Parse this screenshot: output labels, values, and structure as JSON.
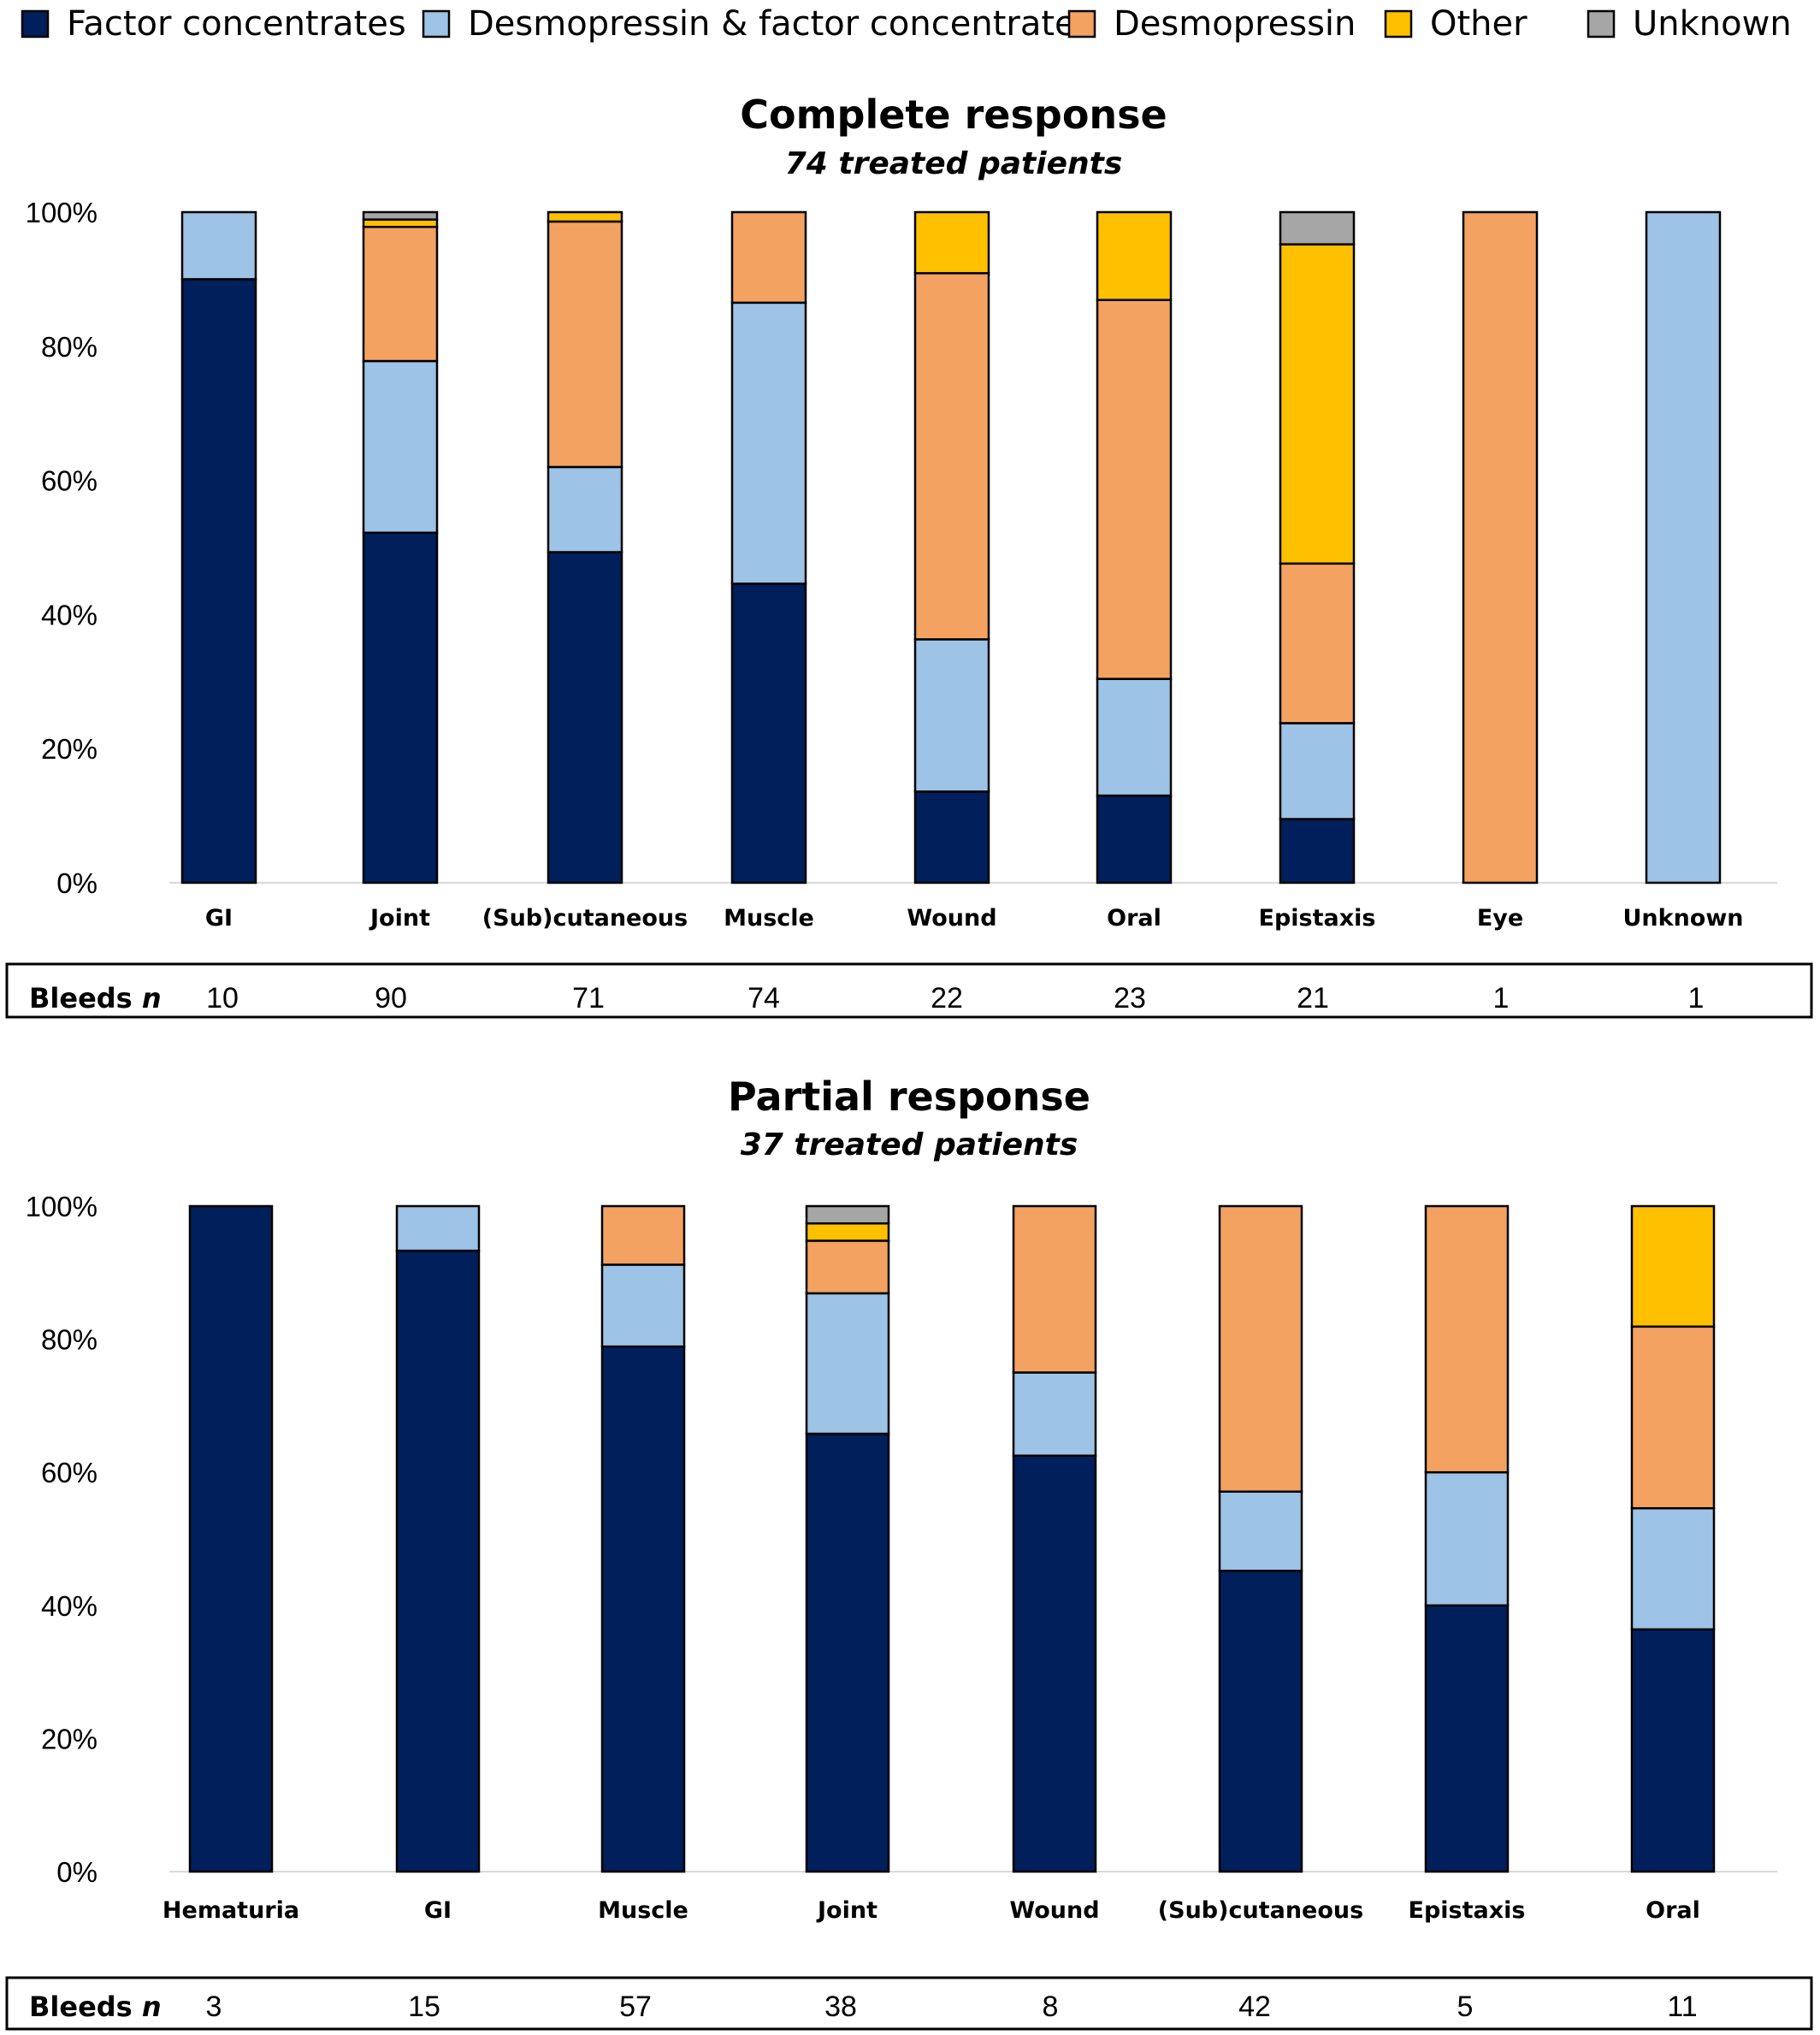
{
  "legend": [
    {
      "name": "Factor concentrates",
      "color": "#001f5b"
    },
    {
      "name": "Desmopressin & factor concentrates",
      "color": "#9dc3e6"
    },
    {
      "name": "Desmopressin",
      "color": "#f4a261"
    },
    {
      "name": "Other",
      "color": "#ffc000"
    },
    {
      "name": "Unknown",
      "color": "#a6a6a6"
    }
  ],
  "y_ticks": [
    "0%",
    "20%",
    "40%",
    "60%",
    "80%",
    "100%"
  ],
  "bleeds_label": "Bleeds",
  "bleeds_label_italic": "n",
  "chart_data": [
    {
      "type": "bar",
      "stacked": true,
      "title": "Complete response",
      "subtitle": "74 treated patients",
      "ylim": [
        0,
        100
      ],
      "categories": [
        "GI",
        "Joint",
        "(Sub)cutaneous",
        "Muscle",
        "Wound",
        "Oral",
        "Epistaxis",
        "Eye",
        "Unknown"
      ],
      "series": [
        {
          "name": "Factor concentrates",
          "values": [
            90,
            52.2,
            49.3,
            44.6,
            13.6,
            13,
            9.5,
            0,
            0
          ]
        },
        {
          "name": "Desmopressin & factor concentrates",
          "values": [
            10,
            25.6,
            12.7,
            41.9,
            22.7,
            17.4,
            14.3,
            0,
            100
          ]
        },
        {
          "name": "Desmopressin",
          "values": [
            0,
            20,
            36.6,
            13.5,
            54.6,
            56.5,
            23.8,
            100,
            0
          ]
        },
        {
          "name": "Other",
          "values": [
            0,
            1.1,
            1.4,
            0,
            9.1,
            13.1,
            47.6,
            0,
            0
          ]
        },
        {
          "name": "Unknown",
          "values": [
            0,
            1.1,
            0,
            0,
            0,
            0,
            4.8,
            0,
            0
          ]
        }
      ],
      "bleeds_n": [
        "10",
        "90",
        "71",
        "74",
        "22",
        "23",
        "21",
        "1",
        "1"
      ]
    },
    {
      "type": "bar",
      "stacked": true,
      "title": "Partial response",
      "subtitle": "37 treated patients",
      "ylim": [
        0,
        100
      ],
      "categories": [
        "Hematuria",
        "GI",
        "Muscle",
        "Joint",
        "Wound",
        "(Sub)cutaneous",
        "Epistaxis",
        "Oral"
      ],
      "series": [
        {
          "name": "Factor concentrates",
          "values": [
            100,
            93.3,
            78.9,
            65.8,
            62.5,
            45.2,
            40,
            36.4
          ]
        },
        {
          "name": "Desmopressin & factor concentrates",
          "values": [
            0,
            6.7,
            12.3,
            21.1,
            12.5,
            11.9,
            20,
            18.2
          ]
        },
        {
          "name": "Desmopressin",
          "values": [
            0,
            0,
            8.8,
            7.9,
            25,
            42.9,
            40,
            27.3
          ]
        },
        {
          "name": "Other",
          "values": [
            0,
            0,
            0,
            2.6,
            0,
            0,
            0,
            18.1
          ]
        },
        {
          "name": "Unknown",
          "values": [
            0,
            0,
            0,
            2.6,
            0,
            0,
            0,
            0
          ]
        }
      ],
      "bleeds_n": [
        "3",
        "15",
        "57",
        "38",
        "8",
        "42",
        "5",
        "11"
      ]
    }
  ]
}
